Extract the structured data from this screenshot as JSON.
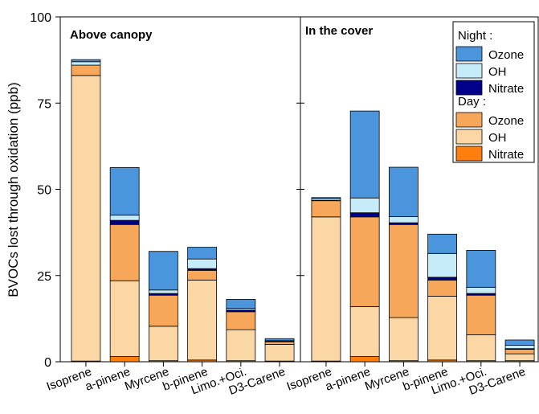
{
  "chart_data": {
    "type": "bar",
    "stacked": true,
    "ylabel": "BVOCs lost through oxidation (ppb)",
    "ylim": [
      0,
      100
    ],
    "yticks": [
      0,
      25,
      50,
      75,
      100
    ],
    "categories": [
      "Isoprene",
      "a-pinene",
      "Myrcene",
      "b-pinene",
      "Limo.+Oci.",
      "D3-Carene"
    ],
    "legend": {
      "placement": "top-right",
      "groups": [
        {
          "title": "Night :",
          "entries": [
            {
              "series": "night_ozone",
              "label": "Ozone"
            },
            {
              "series": "night_oh",
              "label": "OH"
            },
            {
              "series": "night_nitrate",
              "label": "Nitrate"
            }
          ]
        },
        {
          "title": "Day :",
          "entries": [
            {
              "series": "day_ozone",
              "label": "Ozone"
            },
            {
              "series": "day_oh",
              "label": "OH"
            },
            {
              "series": "day_nitrate",
              "label": "Nitrate"
            }
          ]
        }
      ]
    },
    "colors": {
      "day_nitrate": "#ff7f0e",
      "day_oh": "#fad7a4",
      "day_ozone": "#f6a75a",
      "night_nitrate": "#00008b",
      "night_oh": "#c6ecfa",
      "night_ozone": "#4a95dc"
    },
    "stack_order": [
      "day_nitrate",
      "day_oh",
      "day_ozone",
      "night_nitrate",
      "night_oh",
      "night_ozone"
    ],
    "panels": [
      {
        "title": "Above canopy",
        "series": {
          "day_nitrate": [
            0.2,
            1.5,
            0.3,
            0.5,
            0.3,
            0.2
          ],
          "day_oh": [
            82.8,
            22.0,
            10.0,
            23.2,
            9.0,
            4.8
          ],
          "day_ozone": [
            3.0,
            16.3,
            9.0,
            2.8,
            5.2,
            0.8
          ],
          "night_nitrate": [
            0.0,
            1.2,
            0.5,
            0.5,
            0.5,
            0.1
          ],
          "night_oh": [
            1.0,
            1.5,
            1.0,
            2.8,
            0.5,
            0.2
          ],
          "night_ozone": [
            0.6,
            13.8,
            11.2,
            3.4,
            2.6,
            0.6
          ]
        }
      },
      {
        "title": "In the cover",
        "series": {
          "day_nitrate": [
            0.2,
            1.5,
            0.3,
            0.5,
            0.3,
            0.3
          ],
          "day_oh": [
            41.8,
            14.5,
            12.5,
            18.5,
            7.5,
            2.0
          ],
          "day_ozone": [
            4.7,
            26.0,
            27.0,
            4.7,
            11.5,
            1.3
          ],
          "night_nitrate": [
            0.1,
            1.2,
            0.5,
            0.8,
            0.5,
            0.2
          ],
          "night_oh": [
            0.5,
            4.3,
            1.8,
            6.9,
            1.8,
            1.0
          ],
          "night_ozone": [
            0.3,
            25.2,
            14.3,
            5.6,
            10.7,
            1.5
          ]
        }
      }
    ]
  }
}
